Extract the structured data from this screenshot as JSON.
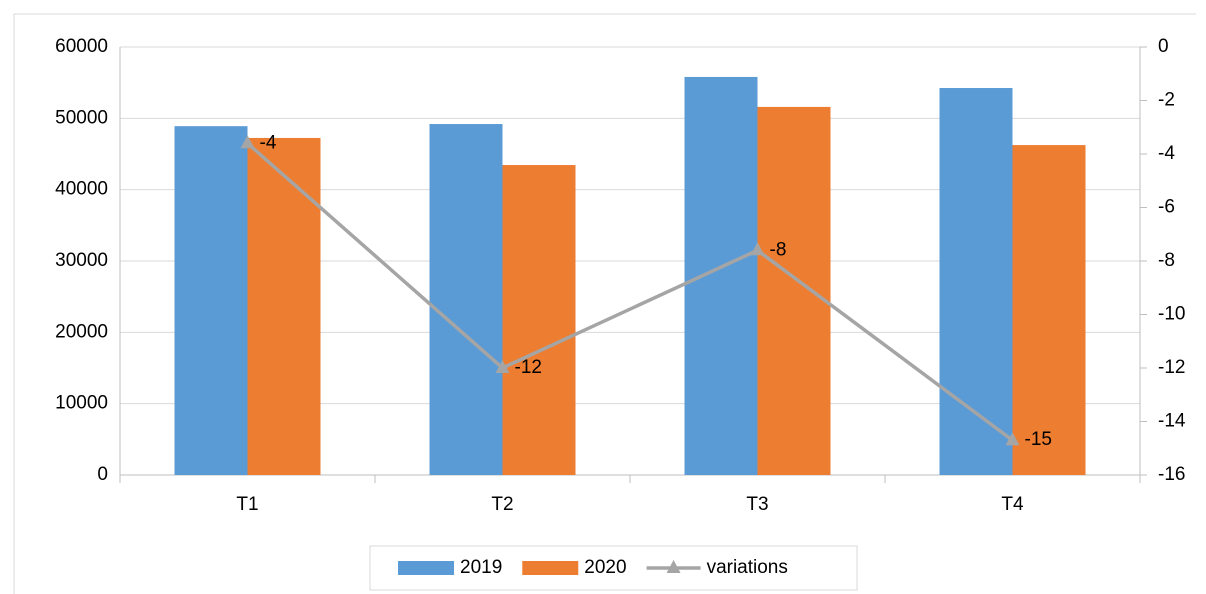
{
  "chart_data": {
    "type": "bar+line",
    "categories": [
      "T1",
      "T2",
      "T3",
      "T4"
    ],
    "series": [
      {
        "name": "2019",
        "color": "#5b9bd5",
        "type": "bar",
        "values": [
          48900,
          49200,
          55800,
          54250
        ]
      },
      {
        "name": "2020",
        "color": "#ed7d31",
        "type": "bar",
        "values": [
          47250,
          43450,
          51600,
          46250
        ]
      },
      {
        "name": "variations",
        "color": "#a5a5a5",
        "type": "line",
        "axis": "y2",
        "values": [
          -3.6,
          -12,
          -7.6,
          -14.7
        ],
        "value_labels": [
          "-4",
          "-12",
          "-8",
          "-15"
        ]
      }
    ],
    "ylim": [
      0,
      60000
    ],
    "yticks": [
      0,
      10000,
      20000,
      30000,
      40000,
      50000,
      60000
    ],
    "y2lim": [
      -16,
      0
    ],
    "y2ticks": [
      -16,
      -14,
      -12,
      -10,
      -8,
      -6,
      -4,
      -2,
      0
    ],
    "grid": true,
    "legend": "bottom"
  }
}
